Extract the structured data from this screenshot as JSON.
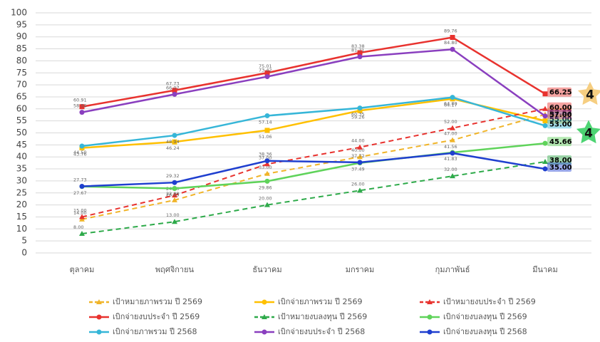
{
  "chart_data": {
    "type": "line",
    "categories": [
      "ตุลาคม",
      "พฤศจิกายน",
      "ธันวาคม",
      "มกราคม",
      "กุมภาพันธ์",
      "มีนาคม"
    ],
    "ylim": [
      0,
      100
    ],
    "yticks": [
      0,
      5,
      10,
      15,
      20,
      25,
      30,
      35,
      40,
      45,
      50,
      55,
      60,
      65,
      70,
      75,
      80,
      85,
      90,
      95,
      100
    ],
    "grid": true,
    "legend": "bottom",
    "series": [
      {
        "name": "เป้าหมายภาพรวม ปี 2569",
        "color": "#f0b429",
        "dash": true,
        "marker": "triangle",
        "values": [
          14,
          22,
          33,
          40,
          47,
          57.67
        ],
        "value_labels": [
          "14.00",
          "22.00",
          "33.00",
          "40.00",
          "47.00",
          "57.67"
        ]
      },
      {
        "name": "เบิกจ่ายภาพรวม ปี 2569",
        "color": "#ffc000",
        "dash": false,
        "marker": "square",
        "values": [
          43.76,
          46.24,
          51.06,
          59.26,
          64.17,
          55
        ],
        "value_labels": [
          "43.76",
          "46.24",
          "51.06",
          "59.26",
          "64.17",
          "55.00"
        ]
      },
      {
        "name": "เป้าหมายงบประจำ ปี 2569",
        "color": "#e8322e",
        "dash": true,
        "marker": "triangle",
        "values": [
          15,
          24,
          37,
          44,
          52,
          60
        ],
        "value_labels": [
          "15.00",
          "24.00",
          "37.00",
          "44.00",
          "52.00",
          "60.00"
        ]
      },
      {
        "name": "เบิกจ่ายงบประจำ ปี 2569",
        "color": "#e8322e",
        "dash": false,
        "marker": "square",
        "values": [
          60.91,
          67.73,
          75.01,
          83.38,
          89.76,
          66.25
        ],
        "value_labels": [
          "60.91",
          "67.73",
          "75.01",
          "83.38",
          "89.76",
          "66.25"
        ]
      },
      {
        "name": "เป้าหมายงบลงทุน ปี 2569",
        "color": "#2eaa4a",
        "dash": true,
        "marker": "triangle",
        "values": [
          8,
          13,
          20,
          26,
          32,
          38
        ],
        "value_labels": [
          "8.00",
          "13.00",
          "20.00",
          "26.00",
          "32.00",
          "38.00"
        ]
      },
      {
        "name": "เบิกจ่ายงบลงทุน ปี 2569",
        "color": "#5fd35a",
        "dash": false,
        "marker": "circle",
        "values": [
          27.67,
          26.85,
          29.86,
          37.49,
          41.83,
          45.66
        ],
        "value_labels": [
          "27.67",
          "26.85",
          "29.86",
          "37.49",
          "41.83",
          "45.66"
        ]
      },
      {
        "name": "เบิกจ่ายภาพรวม ปี 2568",
        "color": "#36b6d8",
        "dash": false,
        "marker": "circle",
        "values": [
          44.5,
          48.94,
          57.14,
          60.35,
          64.8,
          53
        ],
        "value_labels": [
          "44.50",
          "48.94",
          "57.14",
          "60.35",
          "64.80",
          "53.00"
        ]
      },
      {
        "name": "เบิกจ่ายงบประจำ ปี 2568",
        "color": "#8a3fbf",
        "dash": false,
        "marker": "circle",
        "values": [
          58.56,
          66.07,
          73.42,
          81.71,
          84.8,
          57
        ],
        "value_labels": [
          "58.56",
          "66.07",
          "73.42",
          "81.71",
          "84.80",
          "57.00"
        ]
      },
      {
        "name": "เบิกจ่ายงบลงทุน ปี 2568",
        "color": "#1f3fcf",
        "dash": false,
        "marker": "circle",
        "values": [
          27.73,
          29.32,
          38.36,
          37.72,
          41.56,
          35
        ],
        "value_labels": [
          "27.73",
          "29.32",
          "38.36",
          "37.72",
          "41.56",
          "35.00"
        ]
      }
    ],
    "annotations": [
      "4",
      "4"
    ]
  }
}
